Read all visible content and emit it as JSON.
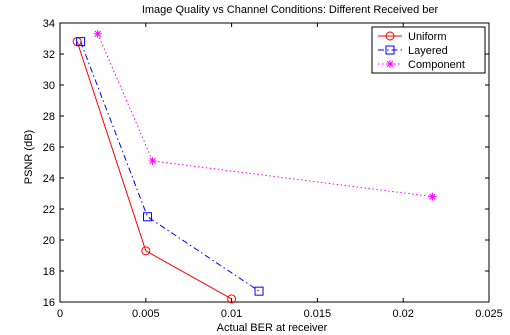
{
  "chart_data": {
    "type": "line",
    "title": "Image Quality vs Channel Conditions: Different Received ber",
    "xlabel": "Actual BER at receiver",
    "ylabel": "PSNR (dB)",
    "xlim": [
      0,
      0.025
    ],
    "ylim": [
      16,
      34
    ],
    "xticks": [
      0,
      0.005,
      0.01,
      0.015,
      0.02,
      0.025
    ],
    "xtick_labels": [
      "0",
      "0.005",
      "0.01",
      "0.015",
      "0.02",
      "0.025"
    ],
    "yticks": [
      16,
      18,
      20,
      22,
      24,
      26,
      28,
      30,
      32,
      34
    ],
    "ytick_labels": [
      "16",
      "18",
      "20",
      "22",
      "24",
      "26",
      "28",
      "30",
      "32",
      "34"
    ],
    "grid": false,
    "legend_position": "top-right",
    "series": [
      {
        "name": "Uniform",
        "color": "#ff0000",
        "line_style": "solid",
        "marker": "circle",
        "x": [
          0.001,
          0.005,
          0.01
        ],
        "y": [
          32.8,
          19.3,
          16.2
        ]
      },
      {
        "name": "Layered",
        "color": "#0000ff",
        "line_style": "dash-dot",
        "marker": "square",
        "x": [
          0.0012,
          0.0051,
          0.0116
        ],
        "y": [
          32.8,
          21.5,
          16.7
        ]
      },
      {
        "name": "Component",
        "color": "#ff00ff",
        "line_style": "dotted",
        "marker": "star",
        "x": [
          0.0022,
          0.0054,
          0.0217
        ],
        "y": [
          33.3,
          25.1,
          22.8
        ]
      }
    ]
  }
}
